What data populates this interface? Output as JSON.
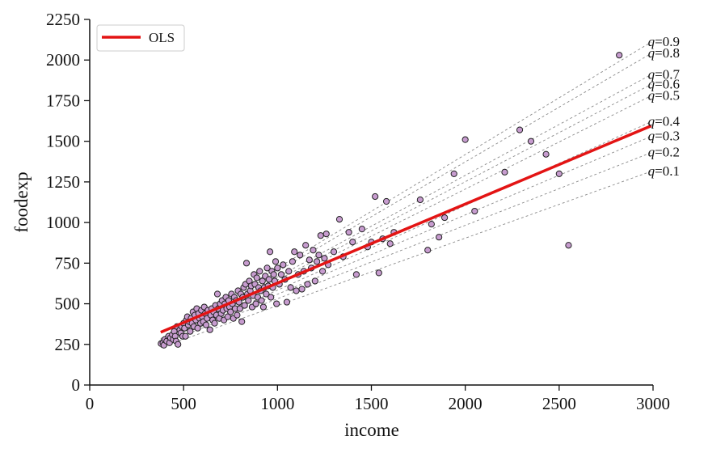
{
  "chart_data": {
    "type": "scatter",
    "title": "",
    "xlabel": "income",
    "ylabel": "foodexp",
    "xlim": [
      0,
      3000
    ],
    "ylim": [
      0,
      2250
    ],
    "xticks": [
      "0",
      "500",
      "1000",
      "1500",
      "2000",
      "2500",
      "3000"
    ],
    "yticks": [
      "0",
      "250",
      "500",
      "750",
      "1000",
      "1250",
      "1500",
      "1750",
      "2000",
      "2250"
    ],
    "grid": false,
    "legend": {
      "placement": "top-left",
      "entries": [
        "OLS"
      ]
    },
    "colors": {
      "points_fill": "#c79ccf",
      "points_edge": "#222222",
      "ols_line": "#e31414",
      "quantile_lines": "#8a8a8a"
    },
    "ols_line": {
      "name": "OLS",
      "x": [
        378,
        2990
      ],
      "y": [
        325,
        1595
      ]
    },
    "quantile_lines": [
      {
        "label": "q=0.1",
        "x": [
          378,
          2990
        ],
        "y": [
          230,
          1315
        ]
      },
      {
        "label": "q=0.2",
        "x": [
          378,
          2990
        ],
        "y": [
          250,
          1430
        ]
      },
      {
        "label": "q=0.3",
        "x": [
          378,
          2990
        ],
        "y": [
          255,
          1530
        ]
      },
      {
        "label": "q=0.4",
        "x": [
          378,
          2990
        ],
        "y": [
          260,
          1620
        ]
      },
      {
        "label": "q=0.5",
        "x": [
          378,
          2990
        ],
        "y": [
          265,
          1780
        ]
      },
      {
        "label": "q=0.6",
        "x": [
          378,
          2990
        ],
        "y": [
          270,
          1850
        ]
      },
      {
        "label": "q=0.7",
        "x": [
          378,
          2990
        ],
        "y": [
          275,
          1910
        ]
      },
      {
        "label": "q=0.8",
        "x": [
          378,
          2990
        ],
        "y": [
          280,
          2040
        ]
      },
      {
        "label": "q=0.9",
        "x": [
          378,
          2990
        ],
        "y": [
          285,
          2110
        ]
      }
    ],
    "points": [
      [
        380,
        255
      ],
      [
        390,
        260
      ],
      [
        395,
        245
      ],
      [
        400,
        280
      ],
      [
        410,
        270
      ],
      [
        420,
        300
      ],
      [
        425,
        260
      ],
      [
        430,
        290
      ],
      [
        440,
        310
      ],
      [
        445,
        280
      ],
      [
        450,
        330
      ],
      [
        455,
        300
      ],
      [
        460,
        270
      ],
      [
        465,
        360
      ],
      [
        470,
        250
      ],
      [
        480,
        340
      ],
      [
        485,
        320
      ],
      [
        490,
        360
      ],
      [
        495,
        300
      ],
      [
        500,
        380
      ],
      [
        505,
        350
      ],
      [
        510,
        300
      ],
      [
        515,
        400
      ],
      [
        520,
        420
      ],
      [
        525,
        370
      ],
      [
        530,
        390
      ],
      [
        535,
        330
      ],
      [
        540,
        410
      ],
      [
        545,
        380
      ],
      [
        550,
        450
      ],
      [
        555,
        360
      ],
      [
        560,
        430
      ],
      [
        565,
        400
      ],
      [
        570,
        470
      ],
      [
        575,
        350
      ],
      [
        580,
        440
      ],
      [
        585,
        410
      ],
      [
        590,
        380
      ],
      [
        595,
        460
      ],
      [
        600,
        420
      ],
      [
        605,
        390
      ],
      [
        610,
        480
      ],
      [
        615,
        440
      ],
      [
        620,
        370
      ],
      [
        625,
        410
      ],
      [
        630,
        460
      ],
      [
        640,
        340
      ],
      [
        645,
        430
      ],
      [
        650,
        470
      ],
      [
        655,
        400
      ],
      [
        660,
        450
      ],
      [
        665,
        380
      ],
      [
        670,
        490
      ],
      [
        675,
        430
      ],
      [
        680,
        560
      ],
      [
        685,
        470
      ],
      [
        690,
        410
      ],
      [
        695,
        500
      ],
      [
        700,
        440
      ],
      [
        705,
        520
      ],
      [
        710,
        460
      ],
      [
        715,
        400
      ],
      [
        720,
        500
      ],
      [
        725,
        540
      ],
      [
        730,
        470
      ],
      [
        735,
        420
      ],
      [
        740,
        520
      ],
      [
        745,
        480
      ],
      [
        750,
        450
      ],
      [
        755,
        560
      ],
      [
        760,
        500
      ],
      [
        765,
        410
      ],
      [
        770,
        540
      ],
      [
        775,
        470
      ],
      [
        780,
        520
      ],
      [
        785,
        430
      ],
      [
        790,
        580
      ],
      [
        795,
        510
      ],
      [
        800,
        470
      ],
      [
        805,
        560
      ],
      [
        810,
        390
      ],
      [
        815,
        540
      ],
      [
        820,
        600
      ],
      [
        825,
        490
      ],
      [
        830,
        620
      ],
      [
        835,
        750
      ],
      [
        840,
        560
      ],
      [
        845,
        520
      ],
      [
        850,
        640
      ],
      [
        855,
        580
      ],
      [
        860,
        610
      ],
      [
        865,
        480
      ],
      [
        870,
        550
      ],
      [
        875,
        680
      ],
      [
        880,
        620
      ],
      [
        885,
        500
      ],
      [
        890,
        660
      ],
      [
        895,
        540
      ],
      [
        900,
        600
      ],
      [
        905,
        700
      ],
      [
        910,
        580
      ],
      [
        915,
        520
      ],
      [
        920,
        640
      ],
      [
        925,
        480
      ],
      [
        930,
        600
      ],
      [
        935,
        670
      ],
      [
        940,
        560
      ],
      [
        945,
        720
      ],
      [
        950,
        610
      ],
      [
        955,
        650
      ],
      [
        960,
        820
      ],
      [
        965,
        540
      ],
      [
        970,
        700
      ],
      [
        975,
        600
      ],
      [
        980,
        680
      ],
      [
        985,
        640
      ],
      [
        990,
        760
      ],
      [
        995,
        500
      ],
      [
        1000,
        720
      ],
      [
        1010,
        620
      ],
      [
        1020,
        680
      ],
      [
        1030,
        740
      ],
      [
        1040,
        650
      ],
      [
        1050,
        510
      ],
      [
        1060,
        700
      ],
      [
        1070,
        600
      ],
      [
        1080,
        760
      ],
      [
        1090,
        820
      ],
      [
        1100,
        580
      ],
      [
        1110,
        680
      ],
      [
        1120,
        800
      ],
      [
        1130,
        590
      ],
      [
        1140,
        700
      ],
      [
        1150,
        860
      ],
      [
        1160,
        620
      ],
      [
        1170,
        770
      ],
      [
        1180,
        720
      ],
      [
        1190,
        830
      ],
      [
        1200,
        640
      ],
      [
        1210,
        760
      ],
      [
        1220,
        800
      ],
      [
        1230,
        920
      ],
      [
        1240,
        700
      ],
      [
        1250,
        780
      ],
      [
        1260,
        930
      ],
      [
        1270,
        740
      ],
      [
        1300,
        820
      ],
      [
        1330,
        1020
      ],
      [
        1350,
        790
      ],
      [
        1380,
        940
      ],
      [
        1400,
        880
      ],
      [
        1420,
        680
      ],
      [
        1450,
        960
      ],
      [
        1480,
        850
      ],
      [
        1500,
        880
      ],
      [
        1520,
        1160
      ],
      [
        1540,
        690
      ],
      [
        1560,
        900
      ],
      [
        1580,
        1130
      ],
      [
        1600,
        870
      ],
      [
        1620,
        940
      ],
      [
        1760,
        1140
      ],
      [
        1800,
        830
      ],
      [
        1820,
        990
      ],
      [
        1860,
        910
      ],
      [
        1890,
        1030
      ],
      [
        1940,
        1300
      ],
      [
        2000,
        1510
      ],
      [
        2050,
        1070
      ],
      [
        2210,
        1310
      ],
      [
        2290,
        1570
      ],
      [
        2350,
        1500
      ],
      [
        2430,
        1420
      ],
      [
        2500,
        1300
      ],
      [
        2550,
        860
      ],
      [
        2820,
        2030
      ]
    ]
  }
}
